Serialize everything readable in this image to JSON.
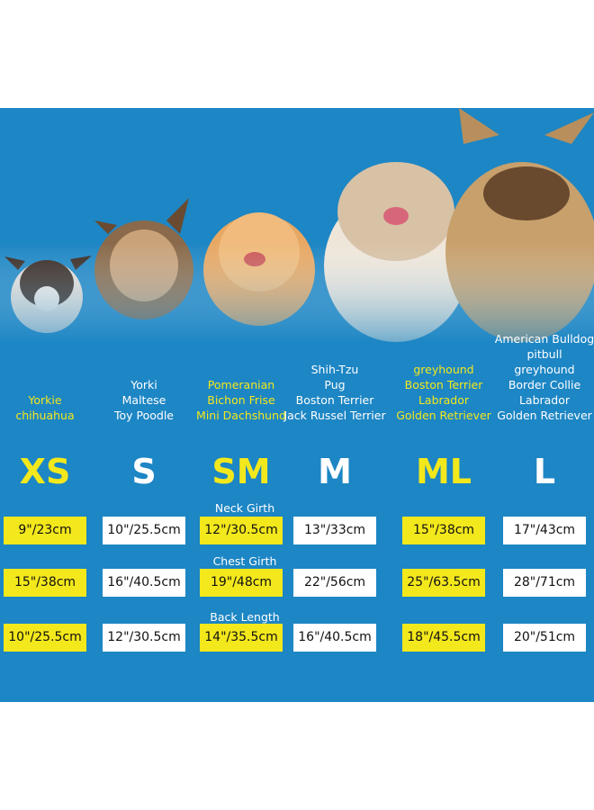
{
  "measurements": [
    "Neck Girth",
    "Chest Girth",
    "Back Length"
  ],
  "sizes": [
    {
      "label": "XS",
      "color": "#f3e81c",
      "breeds": [
        "Yorkie",
        "chihuahua"
      ],
      "breed_colors": [
        "#f3e81c",
        "#f3e81c"
      ],
      "values": [
        "9\"/23cm",
        "15\"/38cm",
        "10\"/25.5cm"
      ]
    },
    {
      "label": "S",
      "color": "#ffffff",
      "breeds": [
        "Yorki",
        "Maltese",
        "Toy Poodle"
      ],
      "breed_colors": [
        "#ffffff",
        "#ffffff",
        "#ffffff"
      ],
      "values": [
        "10\"/25.5cm",
        "16\"/40.5cm",
        "12\"/30.5cm"
      ]
    },
    {
      "label": "SM",
      "color": "#f3e81c",
      "breeds": [
        "Pomeranian",
        "Bichon Frise",
        "Mini Dachshund"
      ],
      "breed_colors": [
        "#f3e81c",
        "#f3e81c",
        "#f3e81c"
      ],
      "values": [
        "12\"/30.5cm",
        "19\"/48cm",
        "14\"/35.5cm"
      ]
    },
    {
      "label": "M",
      "color": "#ffffff",
      "breeds": [
        "Shih-Tzu",
        "Pug",
        "Boston Terrier",
        "Jack Russel Terrier"
      ],
      "breed_colors": [
        "#ffffff",
        "#ffffff",
        "#ffffff",
        "#ffffff"
      ],
      "values": [
        "13\"/33cm",
        "22\"/56cm",
        "16\"/40.5cm"
      ]
    },
    {
      "label": "ML",
      "color": "#f3e81c",
      "breeds": [
        "greyhound",
        "Boston Terrier",
        "Labrador",
        "Golden Retriever"
      ],
      "breed_colors": [
        "#f3e81c",
        "#f3e81c",
        "#f3e81c",
        "#f3e81c"
      ],
      "values": [
        "15\"/38cm",
        "25\"/63.5cm",
        "18\"/45.5cm"
      ]
    },
    {
      "label": "L",
      "color": "#ffffff",
      "breeds": [
        "American Bulldog",
        "pitbull",
        "greyhound",
        "Border Collie",
        "Labrador",
        "Golden Retriever"
      ],
      "breed_colors": [
        "#ffffff",
        "#ffffff",
        "#ffffff",
        "#ffffff",
        "#ffffff",
        "#ffffff"
      ],
      "values": [
        "17\"/43cm",
        "28\"/71cm",
        "20\"/51cm"
      ]
    }
  ]
}
